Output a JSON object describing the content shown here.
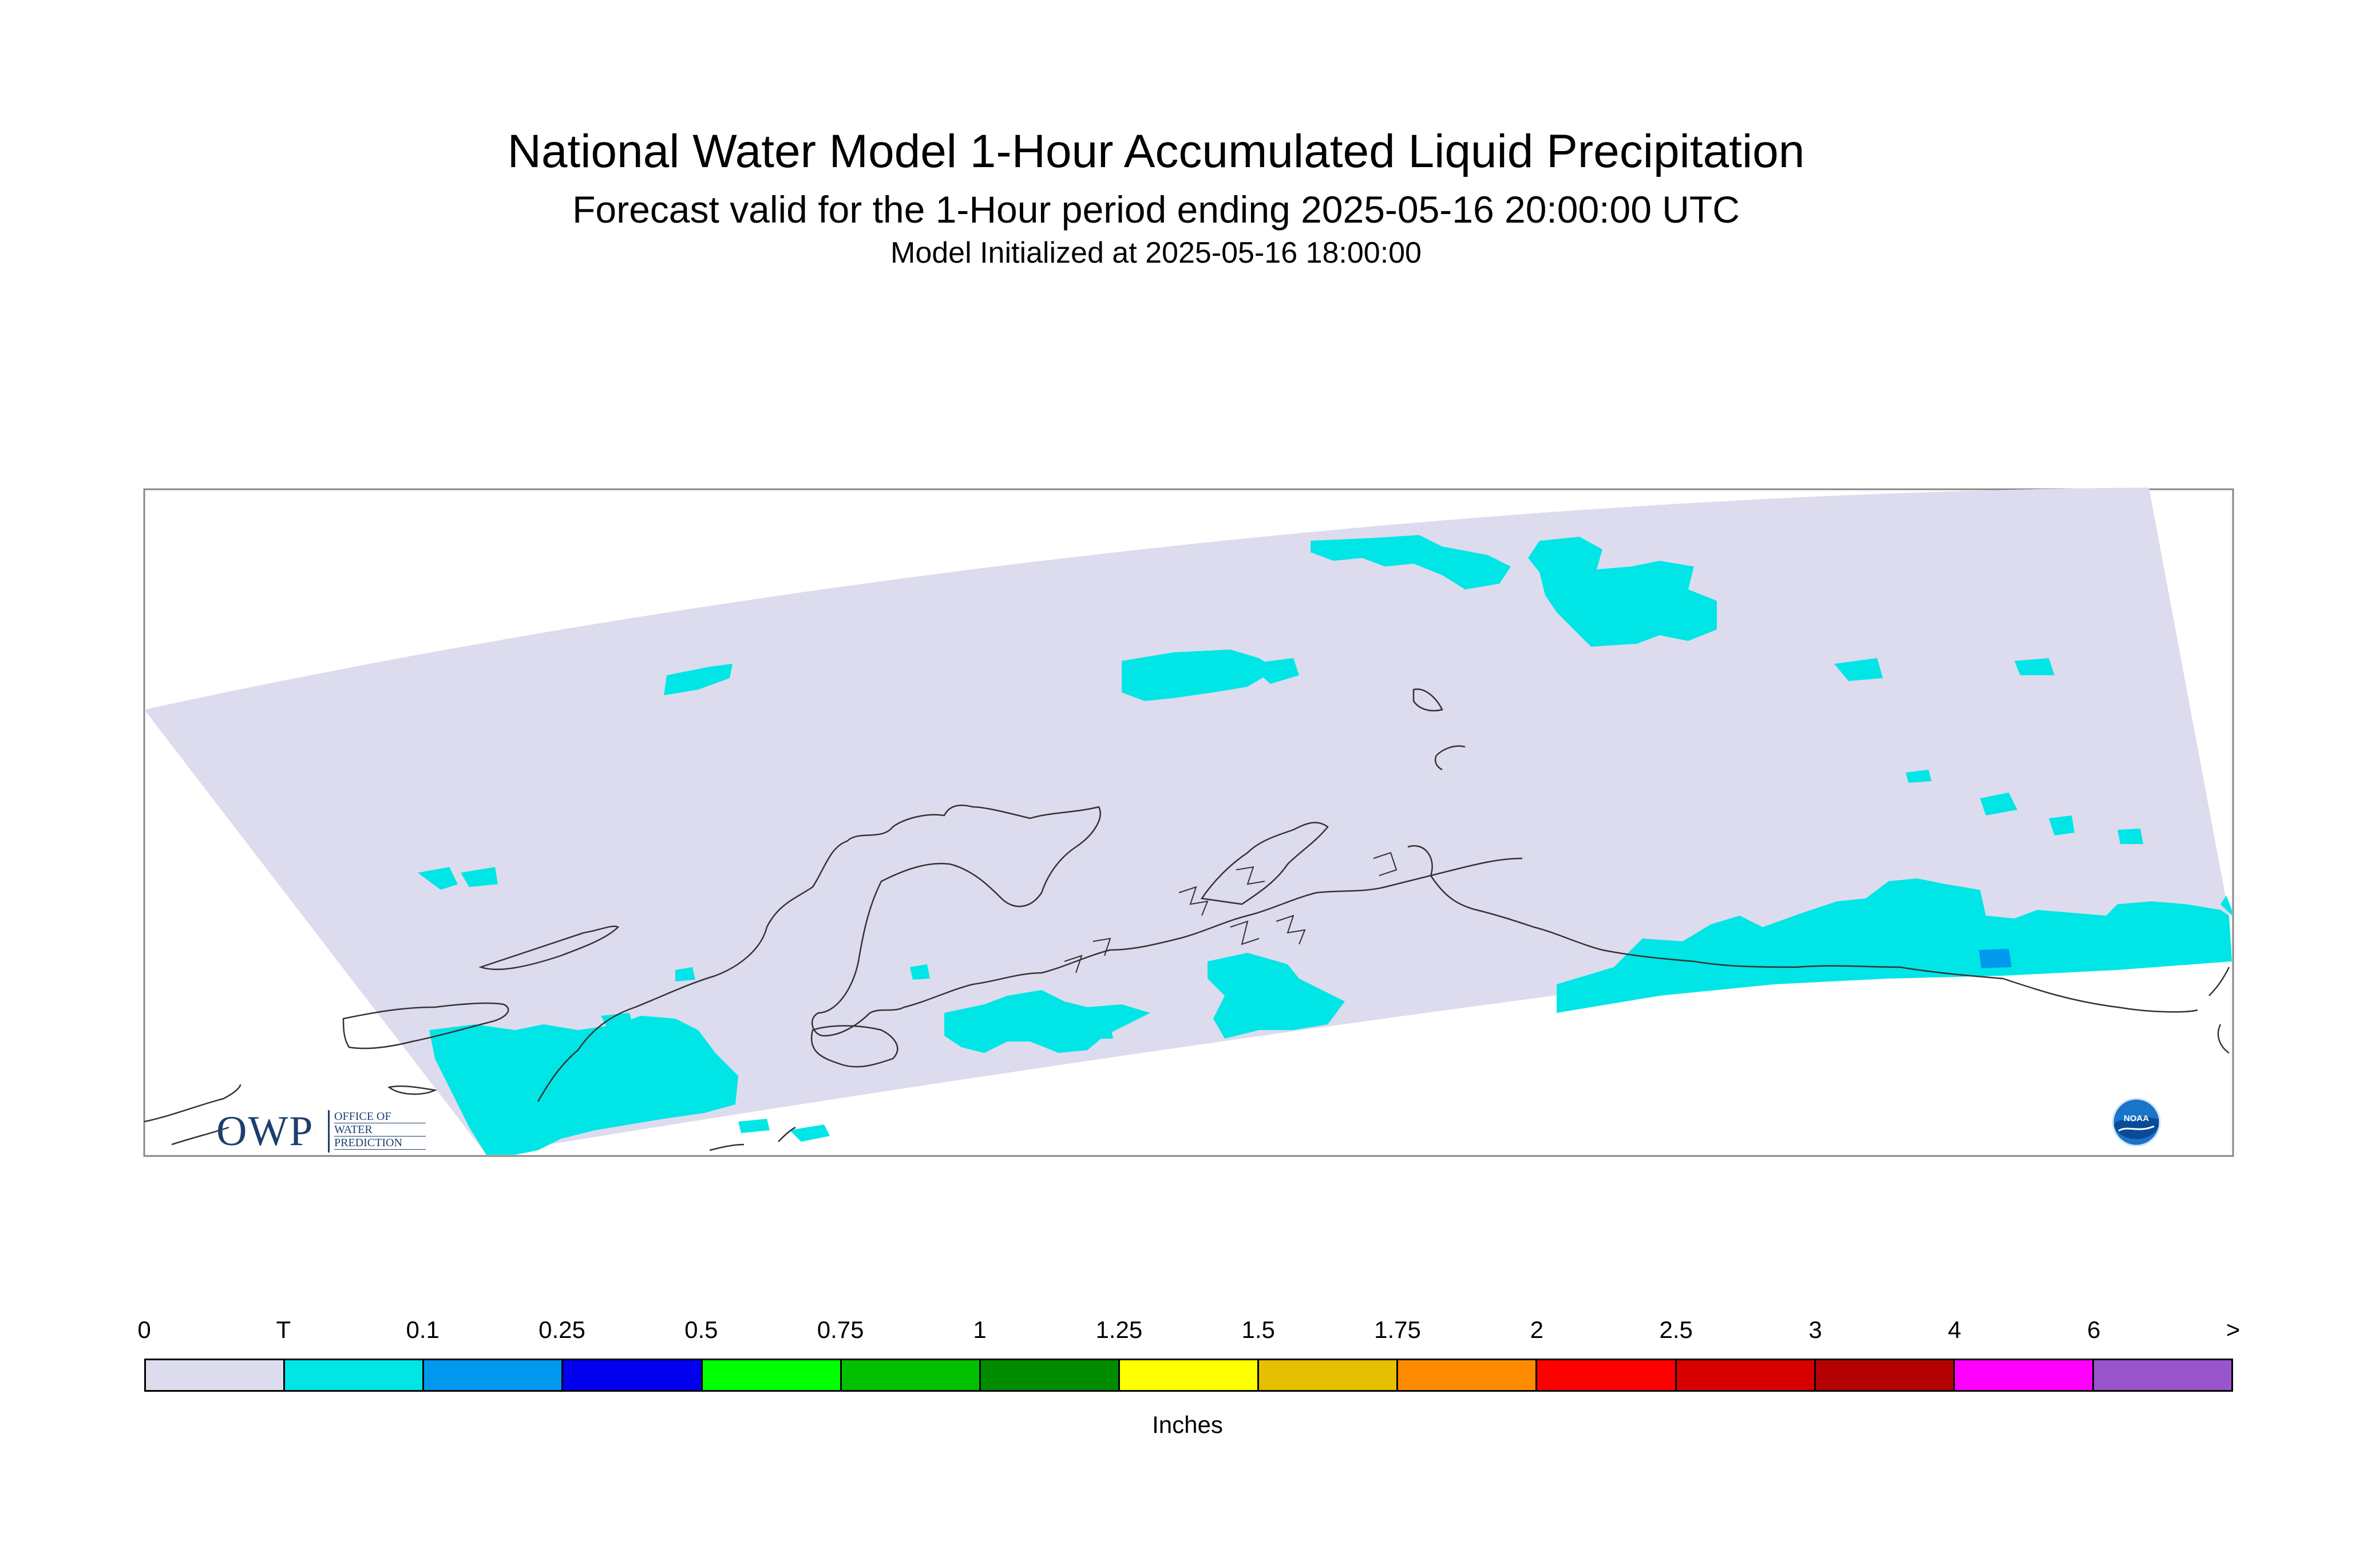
{
  "header": {
    "title": "National Water Model 1-Hour Accumulated Liquid Precipitation",
    "subtitle": "Forecast valid for the 1-Hour period ending 2025-05-16 20:00:00 UTC",
    "initialized": "Model Initialized at 2025-05-16 18:00:00"
  },
  "legend": {
    "labels": [
      "0",
      "T",
      "0.1",
      "0.25",
      "0.5",
      "0.75",
      "1",
      "1.25",
      "1.5",
      "1.75",
      "2",
      "2.5",
      "3",
      "4",
      "6",
      ">"
    ],
    "colors": [
      "#dcdcee",
      "#00e5e5",
      "#0099ee",
      "#0000ee",
      "#00ff00",
      "#00c000",
      "#008c00",
      "#ffff00",
      "#e5bf00",
      "#ff8c00",
      "#ff0000",
      "#d60000",
      "#b40000",
      "#ff00ff",
      "#9955cc"
    ],
    "units": "Inches"
  },
  "map": {
    "domain_fill": "#dcdcee",
    "precip_trace_color": "#00e5e5",
    "precip_light_color": "#0099ee",
    "coast_color": "#333333"
  },
  "logos": {
    "owp_letters": "OWP",
    "owp_lines": [
      "OFFICE OF",
      "WATER",
      "PREDICTION"
    ],
    "noaa_text": "NOAA"
  }
}
